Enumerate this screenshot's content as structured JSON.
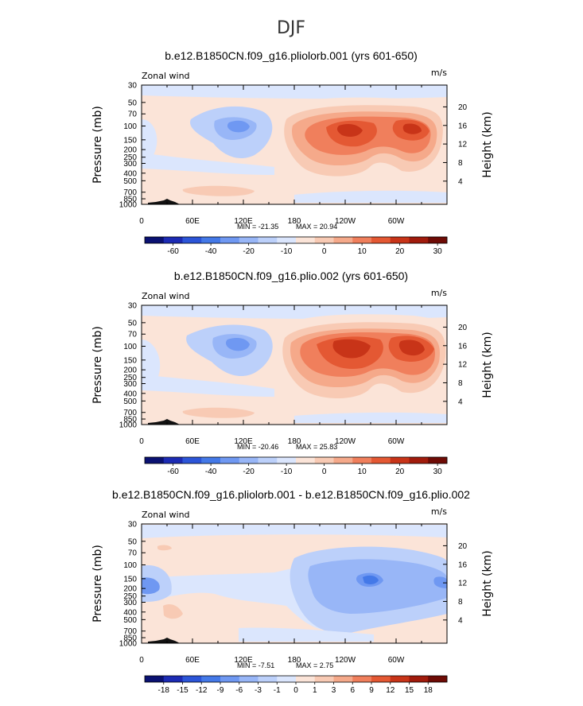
{
  "page_title": "DJF",
  "colors": {
    "frame": "#000000",
    "terrain": "#111111"
  },
  "chart_data": [
    {
      "type": "heatmap",
      "title": "b.e12.B1850CN.f09_g16.pliolorb.001 (yrs 601-650)",
      "left_label": "Zonal wind",
      "right_label": "m/s",
      "ylabel": "Pressure  (mb)",
      "y2label": "Height  (km)",
      "xticks": [
        "0",
        "60E",
        "120E",
        "180",
        "120W",
        "60W"
      ],
      "xtick_values": [
        0,
        60,
        120,
        180,
        240,
        300
      ],
      "xlim": [
        0,
        360
      ],
      "yticks": [
        "30",
        "50",
        "70",
        "100",
        "150",
        "200",
        "250",
        "300",
        "400",
        "500",
        "700",
        "850",
        "1000"
      ],
      "ytick_values": [
        30,
        50,
        70,
        100,
        150,
        200,
        250,
        300,
        400,
        500,
        700,
        850,
        1000
      ],
      "ylim": [
        1000,
        30
      ],
      "y2ticks": [
        "20",
        "16",
        "12",
        "8",
        "4"
      ],
      "y2tick_values": [
        20,
        16,
        12,
        8,
        4
      ],
      "min_label": "MIN = -21.35",
      "max_label": "MAX = 20.94",
      "min": -21.35,
      "max": 20.94,
      "colorbar_labels": [
        "-60",
        "-40",
        "-20",
        "-10",
        "0",
        "10",
        "20",
        "30"
      ],
      "colorbar_colors": [
        "#0a1172",
        "#1c2bb4",
        "#2c55d8",
        "#4479e8",
        "#6f98f2",
        "#98b6f7",
        "#bcd0fa",
        "#dbe6fd",
        "#fbe4d8",
        "#f8cab4",
        "#f5a98a",
        "#f07f5c",
        "#e45833",
        "#c83418",
        "#a11b0c",
        "#6e0b05"
      ]
    },
    {
      "type": "heatmap",
      "title": "b.e12.B1850CN.f09_g16.plio.002 (yrs 601-650)",
      "left_label": "Zonal wind",
      "right_label": "m/s",
      "ylabel": "Pressure  (mb)",
      "y2label": "Height  (km)",
      "xticks": [
        "0",
        "60E",
        "120E",
        "180",
        "120W",
        "60W"
      ],
      "xtick_values": [
        0,
        60,
        120,
        180,
        240,
        300
      ],
      "xlim": [
        0,
        360
      ],
      "yticks": [
        "30",
        "50",
        "70",
        "100",
        "150",
        "200",
        "250",
        "300",
        "400",
        "500",
        "700",
        "850",
        "1000"
      ],
      "ytick_values": [
        30,
        50,
        70,
        100,
        150,
        200,
        250,
        300,
        400,
        500,
        700,
        850,
        1000
      ],
      "ylim": [
        1000,
        30
      ],
      "y2ticks": [
        "20",
        "16",
        "12",
        "8",
        "4"
      ],
      "y2tick_values": [
        20,
        16,
        12,
        8,
        4
      ],
      "min_label": "MIN = -20.46",
      "max_label": "MAX = 25.83",
      "min": -20.46,
      "max": 25.83,
      "colorbar_labels": [
        "-60",
        "-40",
        "-20",
        "-10",
        "0",
        "10",
        "20",
        "30"
      ],
      "colorbar_colors": [
        "#0a1172",
        "#1c2bb4",
        "#2c55d8",
        "#4479e8",
        "#6f98f2",
        "#98b6f7",
        "#bcd0fa",
        "#dbe6fd",
        "#fbe4d8",
        "#f8cab4",
        "#f5a98a",
        "#f07f5c",
        "#e45833",
        "#c83418",
        "#a11b0c",
        "#6e0b05"
      ]
    },
    {
      "type": "heatmap",
      "title": "b.e12.B1850CN.f09_g16.pliolorb.001 - b.e12.B1850CN.f09_g16.plio.002",
      "left_label": "Zonal wind",
      "right_label": "m/s",
      "ylabel": "Pressure  (mb)",
      "y2label": "Height  (km)",
      "xticks": [
        "0",
        "60E",
        "120E",
        "180",
        "120W",
        "60W"
      ],
      "xtick_values": [
        0,
        60,
        120,
        180,
        240,
        300
      ],
      "xlim": [
        0,
        360
      ],
      "yticks": [
        "30",
        "50",
        "70",
        "100",
        "150",
        "200",
        "250",
        "300",
        "400",
        "500",
        "700",
        "850",
        "1000"
      ],
      "ytick_values": [
        30,
        50,
        70,
        100,
        150,
        200,
        250,
        300,
        400,
        500,
        700,
        850,
        1000
      ],
      "ylim": [
        1000,
        30
      ],
      "y2ticks": [
        "20",
        "16",
        "12",
        "8",
        "4"
      ],
      "y2tick_values": [
        20,
        16,
        12,
        8,
        4
      ],
      "min_label": "MIN = -7.51",
      "max_label": "MAX = 2.75",
      "min": -7.51,
      "max": 2.75,
      "colorbar_labels": [
        "-18",
        "-15",
        "-12",
        "-9",
        "-6",
        "-3",
        "-1",
        "0",
        "1",
        "3",
        "6",
        "9",
        "12",
        "15",
        "18"
      ],
      "colorbar_colors": [
        "#0a1172",
        "#1c2bb4",
        "#2c55d8",
        "#4479e8",
        "#6f98f2",
        "#98b6f7",
        "#bcd0fa",
        "#dbe6fd",
        "#fbe4d8",
        "#f8cab4",
        "#f5a98a",
        "#f07f5c",
        "#e45833",
        "#c83418",
        "#a11b0c",
        "#6e0b05"
      ]
    }
  ]
}
